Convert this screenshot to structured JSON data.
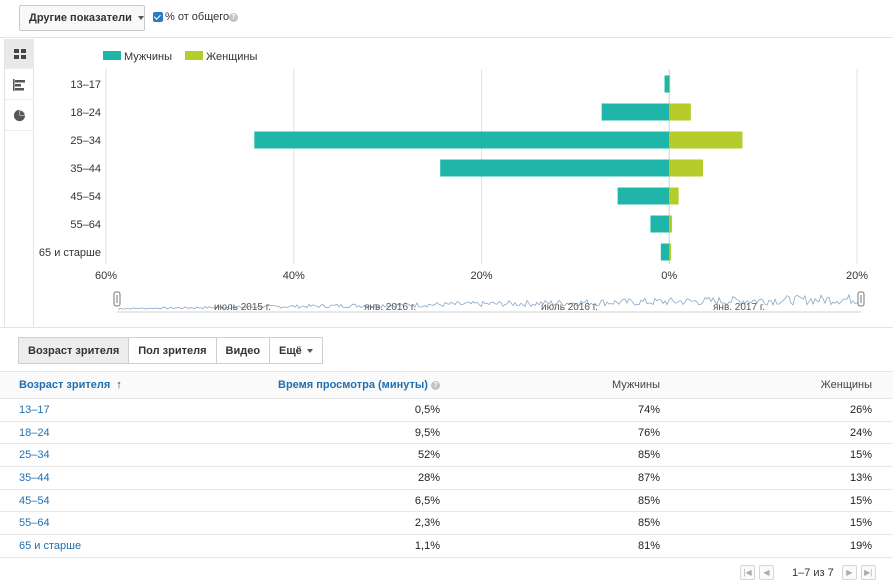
{
  "toolbar": {
    "metrics_button": "Другие показатели",
    "percent_label": "% от общего",
    "percent_checked": true,
    "help_glyph": "?"
  },
  "view_switcher": [
    {
      "icon": "table-icon",
      "active": true
    },
    {
      "icon": "bar-chart-icon",
      "active": false
    },
    {
      "icon": "pie-chart-icon",
      "active": false
    }
  ],
  "chart_data": {
    "type": "bar",
    "orientation": "horizontal-diverging",
    "categories": [
      "13–17",
      "18–24",
      "25–34",
      "35–44",
      "45–54",
      "55–64",
      "65 и старше"
    ],
    "series": [
      {
        "name": "Мужчины",
        "color": "#1fb5a8",
        "values": [
          0.5,
          7.2,
          44.2,
          24.4,
          5.5,
          2.0,
          0.9
        ]
      },
      {
        "name": "Женщины",
        "color": "#b5cc2a",
        "values": [
          0.1,
          2.3,
          7.8,
          3.6,
          1.0,
          0.3,
          0.2
        ]
      }
    ],
    "x_ticks": [
      "60%",
      "40%",
      "20%",
      "0%",
      "20%"
    ],
    "xlim": [
      -60,
      20
    ],
    "legend_position": "top-left",
    "grid": true,
    "timeline_labels": [
      "июль 2015 г.",
      "янв. 2016 г.",
      "июль 2016 г.",
      "янв. 2017 г."
    ]
  },
  "tabs": [
    {
      "label": "Возраст зрителя",
      "active": true
    },
    {
      "label": "Пол зрителя",
      "active": false
    },
    {
      "label": "Видео",
      "active": false
    },
    {
      "label": "Ещё",
      "active": false,
      "dropdown": true
    }
  ],
  "table": {
    "headers": [
      "Возраст зрителя",
      "Время просмотра (минуты)",
      "Мужчины",
      "Женщины"
    ],
    "sort_indicator": "↑",
    "rows": [
      [
        "13–17",
        "0,5%",
        "74%",
        "26%"
      ],
      [
        "18–24",
        "9,5%",
        "76%",
        "24%"
      ],
      [
        "25–34",
        "52%",
        "85%",
        "15%"
      ],
      [
        "35–44",
        "28%",
        "87%",
        "13%"
      ],
      [
        "45–54",
        "6,5%",
        "85%",
        "15%"
      ],
      [
        "55–64",
        "2,3%",
        "85%",
        "15%"
      ],
      [
        "65 и старше",
        "1,1%",
        "81%",
        "19%"
      ]
    ]
  },
  "pagination": {
    "text": "1–7 из 7",
    "first": "|◀",
    "prev": "◀",
    "next": "▶",
    "last": "▶|"
  }
}
